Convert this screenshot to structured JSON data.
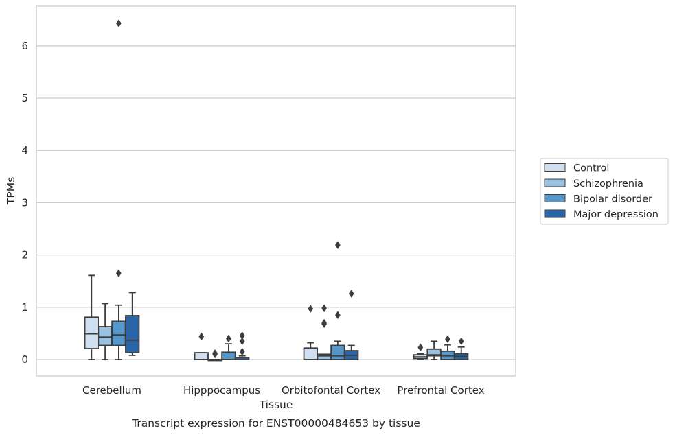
{
  "chart_data": {
    "type": "box",
    "ylabel": "TPMs",
    "xlabel": "Tissue",
    "caption": "Transcript expression for ENST00000484653 by tissue",
    "ylim": [
      -0.3,
      6.75
    ],
    "yticks": [
      0,
      1,
      2,
      3,
      4,
      5,
      6
    ],
    "grid": "horizontal",
    "legend_position": "right",
    "categories": [
      "Cerebellum",
      "Hipppocampus",
      "Orbitofontal Cortex",
      "Prefrontal Cortex"
    ],
    "series": [
      {
        "name": "Control",
        "color": "#d0dff0",
        "boxes": [
          {
            "whisker_low": 0.0,
            "q1": 0.21,
            "median": 0.49,
            "q3": 0.81,
            "whisker_high": 1.61,
            "outliers": []
          },
          {
            "whisker_low": 0.0,
            "q1": 0.0,
            "median": 0.0,
            "q3": 0.13,
            "whisker_high": 0.13,
            "outliers": [
              0.44
            ]
          },
          {
            "whisker_low": 0.0,
            "q1": 0.0,
            "median": 0.0,
            "q3": 0.22,
            "whisker_high": 0.32,
            "outliers": [
              0.97
            ]
          },
          {
            "whisker_low": 0.0,
            "q1": 0.02,
            "median": 0.05,
            "q3": 0.09,
            "whisker_high": 0.11,
            "outliers": [
              0.23
            ]
          }
        ]
      },
      {
        "name": "Schizophrenia",
        "color": "#9bc1de",
        "boxes": [
          {
            "whisker_low": 0.0,
            "q1": 0.27,
            "median": 0.43,
            "q3": 0.63,
            "whisker_high": 1.07,
            "outliers": []
          },
          {
            "whisker_low": 0.0,
            "q1": 0.0,
            "median": 0.0,
            "q3": 0.0,
            "whisker_high": 0.0,
            "outliers": [
              0.1,
              0.12
            ]
          },
          {
            "whisker_low": 0.0,
            "q1": 0.0,
            "median": 0.07,
            "q3": 0.1,
            "whisker_high": 0.1,
            "outliers": [
              0.68,
              0.7,
              0.98
            ]
          },
          {
            "whisker_low": 0.0,
            "q1": 0.07,
            "median": 0.09,
            "q3": 0.2,
            "whisker_high": 0.35,
            "outliers": []
          }
        ]
      },
      {
        "name": "Bipolar disorder",
        "color": "#5497c8",
        "boxes": [
          {
            "whisker_low": 0.0,
            "q1": 0.27,
            "median": 0.47,
            "q3": 0.73,
            "whisker_high": 1.04,
            "outliers": [
              6.43,
              1.65
            ]
          },
          {
            "whisker_low": 0.0,
            "q1": 0.0,
            "median": 0.0,
            "q3": 0.14,
            "whisker_high": 0.3,
            "outliers": [
              0.4
            ]
          },
          {
            "whisker_low": 0.0,
            "q1": 0.0,
            "median": 0.07,
            "q3": 0.27,
            "whisker_high": 0.35,
            "outliers": [
              0.85,
              2.19
            ]
          },
          {
            "whisker_low": 0.0,
            "q1": 0.0,
            "median": 0.07,
            "q3": 0.16,
            "whisker_high": 0.28,
            "outliers": [
              0.39
            ]
          }
        ]
      },
      {
        "name": "Major depression",
        "color": "#2965a6",
        "boxes": [
          {
            "whisker_low": 0.08,
            "q1": 0.13,
            "median": 0.37,
            "q3": 0.84,
            "whisker_high": 1.28,
            "outliers": []
          },
          {
            "whisker_low": 0.0,
            "q1": 0.0,
            "median": 0.0,
            "q3": 0.04,
            "whisker_high": 0.07,
            "outliers": [
              0.15,
              0.35,
              0.46
            ]
          },
          {
            "whisker_low": 0.0,
            "q1": 0.0,
            "median": 0.08,
            "q3": 0.17,
            "whisker_high": 0.27,
            "outliers": [
              1.26
            ]
          },
          {
            "whisker_low": 0.0,
            "q1": 0.0,
            "median": 0.06,
            "q3": 0.11,
            "whisker_high": 0.24,
            "outliers": [
              0.35
            ]
          }
        ]
      }
    ]
  }
}
